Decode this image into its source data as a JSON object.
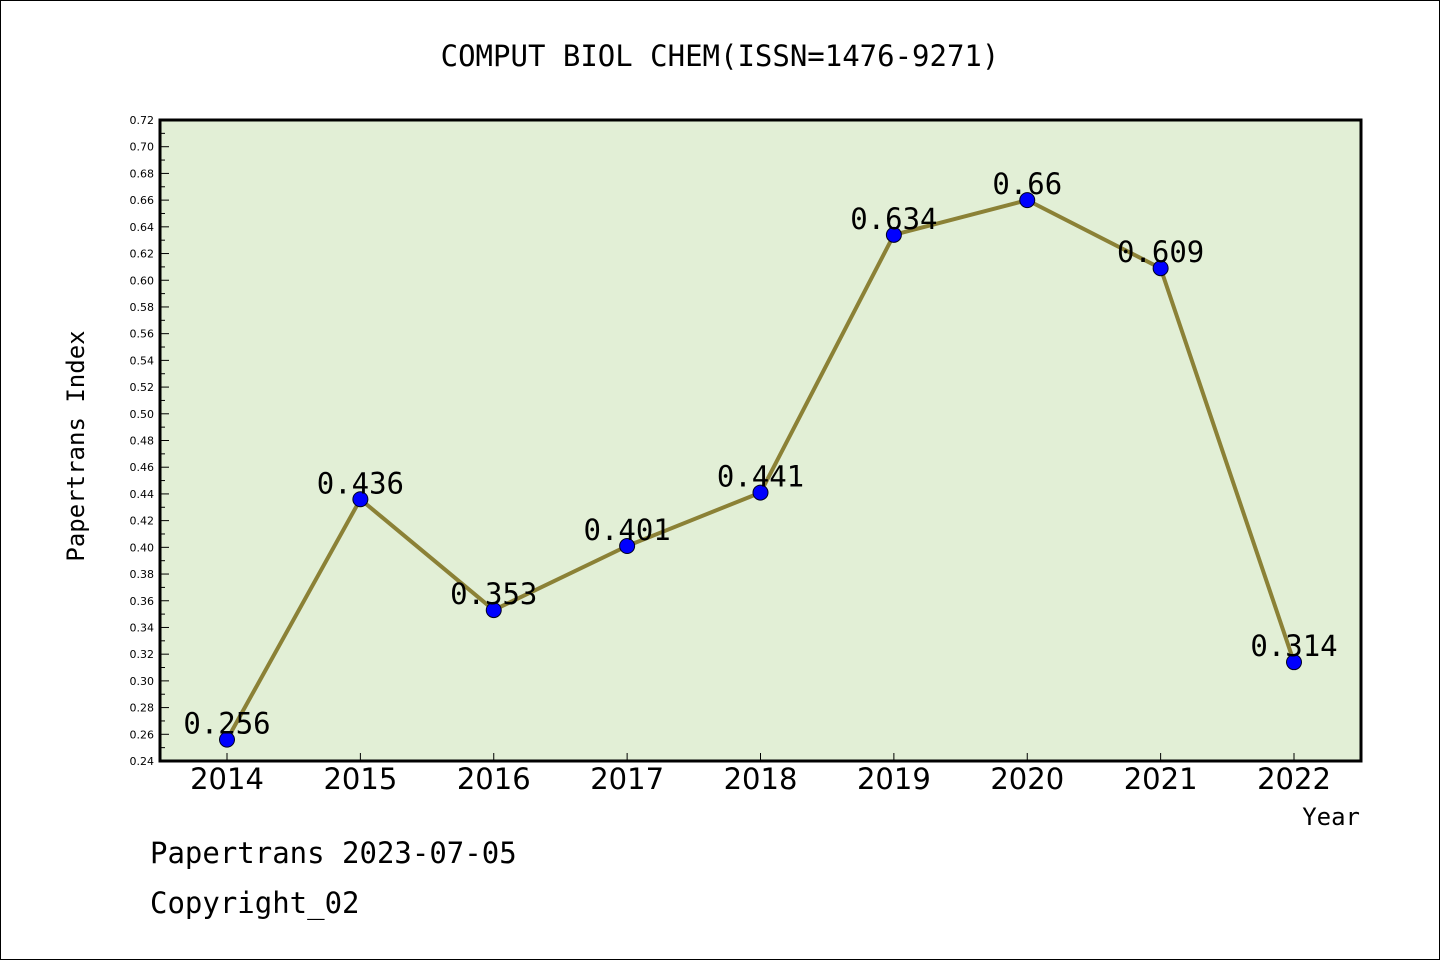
{
  "chart_data": {
    "type": "line",
    "title": "COMPUT BIOL CHEM(ISSN=1476-9271)",
    "xlabel": "Year",
    "ylabel": "Papertrans Index",
    "categories": [
      "2014",
      "2015",
      "2016",
      "2017",
      "2018",
      "2019",
      "2020",
      "2021",
      "2022"
    ],
    "series": [
      {
        "values": [
          0.256,
          0.436,
          0.353,
          0.401,
          0.441,
          0.634,
          0.66,
          0.609,
          0.314
        ],
        "labels": [
          "0.256",
          "0.436",
          "0.353",
          "0.401",
          "0.441",
          "0.634",
          "0.66",
          "0.609",
          "0.314"
        ]
      }
    ],
    "ylim": [
      0.24,
      0.72
    ],
    "ytick_step": 0.02,
    "grid": false,
    "colors": {
      "plot_background": "#e2efd6",
      "line": "#8b8136",
      "marker": "#0000ff"
    }
  },
  "footer": {
    "date_line": "Papertrans 2023-07-05",
    "copyright_line": "Copyright_02"
  }
}
